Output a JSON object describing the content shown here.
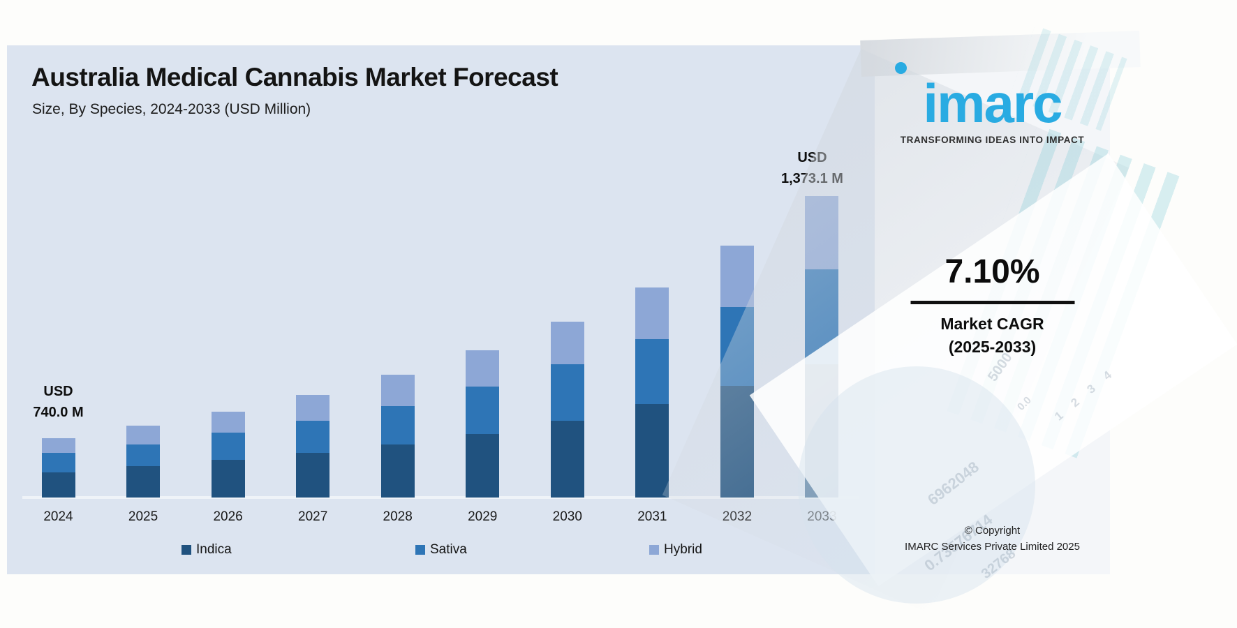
{
  "header": {
    "title": "Australia Medical Cannabis Market Forecast",
    "subtitle": "Size, By Species, 2024-2033 (USD Million)"
  },
  "chart_data": {
    "type": "bar",
    "stacked": true,
    "title": "Australia Medical Cannabis Market Forecast",
    "subtitle": "Size, By Species, 2024-2033 (USD Million)",
    "unit": "USD Million",
    "grid": false,
    "axes_visible": false,
    "legend_position": "bottom",
    "categories": [
      "2024",
      "2025",
      "2026",
      "2027",
      "2028",
      "2029",
      "2030",
      "2031",
      "2032",
      "2033"
    ],
    "totals_usd_m": [
      740.0,
      792.6,
      849.0,
      909.3,
      974.0,
      1043.2,
      1117.4,
      1196.8,
      1281.9,
      1373.1
    ],
    "labeled_totals": {
      "2024": "USD 740.0 M",
      "2033": "USD 1,373.1 M"
    },
    "cagr_2025_2033": "7.10%",
    "series": [
      {
        "name": "Indica",
        "color": "#20527f",
        "values_usd_m": [
          313.5,
          346.3,
          372.7,
          395.9,
          420.6,
          449.9,
          487.7,
          532.8,
          568.1,
          607.1
        ],
        "px": [
          36,
          45,
          54,
          64,
          76,
          91,
          110,
          134,
          160,
          191
        ]
      },
      {
        "name": "Sativa",
        "color": "#2e75b6",
        "values_usd_m": [
          243.8,
          238.6,
          269.2,
          284.6,
          304.4,
          336.2,
          359.2,
          369.8,
          401.2,
          432.3
        ],
        "px": [
          28,
          31,
          39,
          46,
          55,
          68,
          81,
          93,
          113,
          136
        ]
      },
      {
        "name": "Hybrid",
        "color": "#8da7d6",
        "values_usd_m": [
          182.8,
          207.7,
          207.1,
          228.9,
          249.0,
          257.1,
          270.5,
          294.2,
          312.5,
          333.8
        ],
        "px": [
          21,
          27,
          30,
          37,
          45,
          52,
          61,
          74,
          88,
          105
        ]
      }
    ],
    "data_labels": [
      {
        "category": "2024",
        "line1": "USD",
        "line2": "740.0 M"
      },
      {
        "category": "2033",
        "line1": "USD",
        "line2": "1,373.1 M"
      }
    ]
  },
  "right_panel": {
    "logo_text": "imarc",
    "logo_color": "#29abe2",
    "tagline": "TRANSFORMING IDEAS INTO IMPACT",
    "cagr_value": "7.10%",
    "cagr_label_line1": "Market CAGR",
    "cagr_label_line2": "(2025-2033)",
    "copyright_line1": "© Copyright",
    "copyright_line2": "IMARC Services Private Limited 2025",
    "watermarks": [
      "5000",
      "0.0",
      "1 2 3 4",
      "6962048",
      "0.73576714",
      "32768"
    ]
  }
}
